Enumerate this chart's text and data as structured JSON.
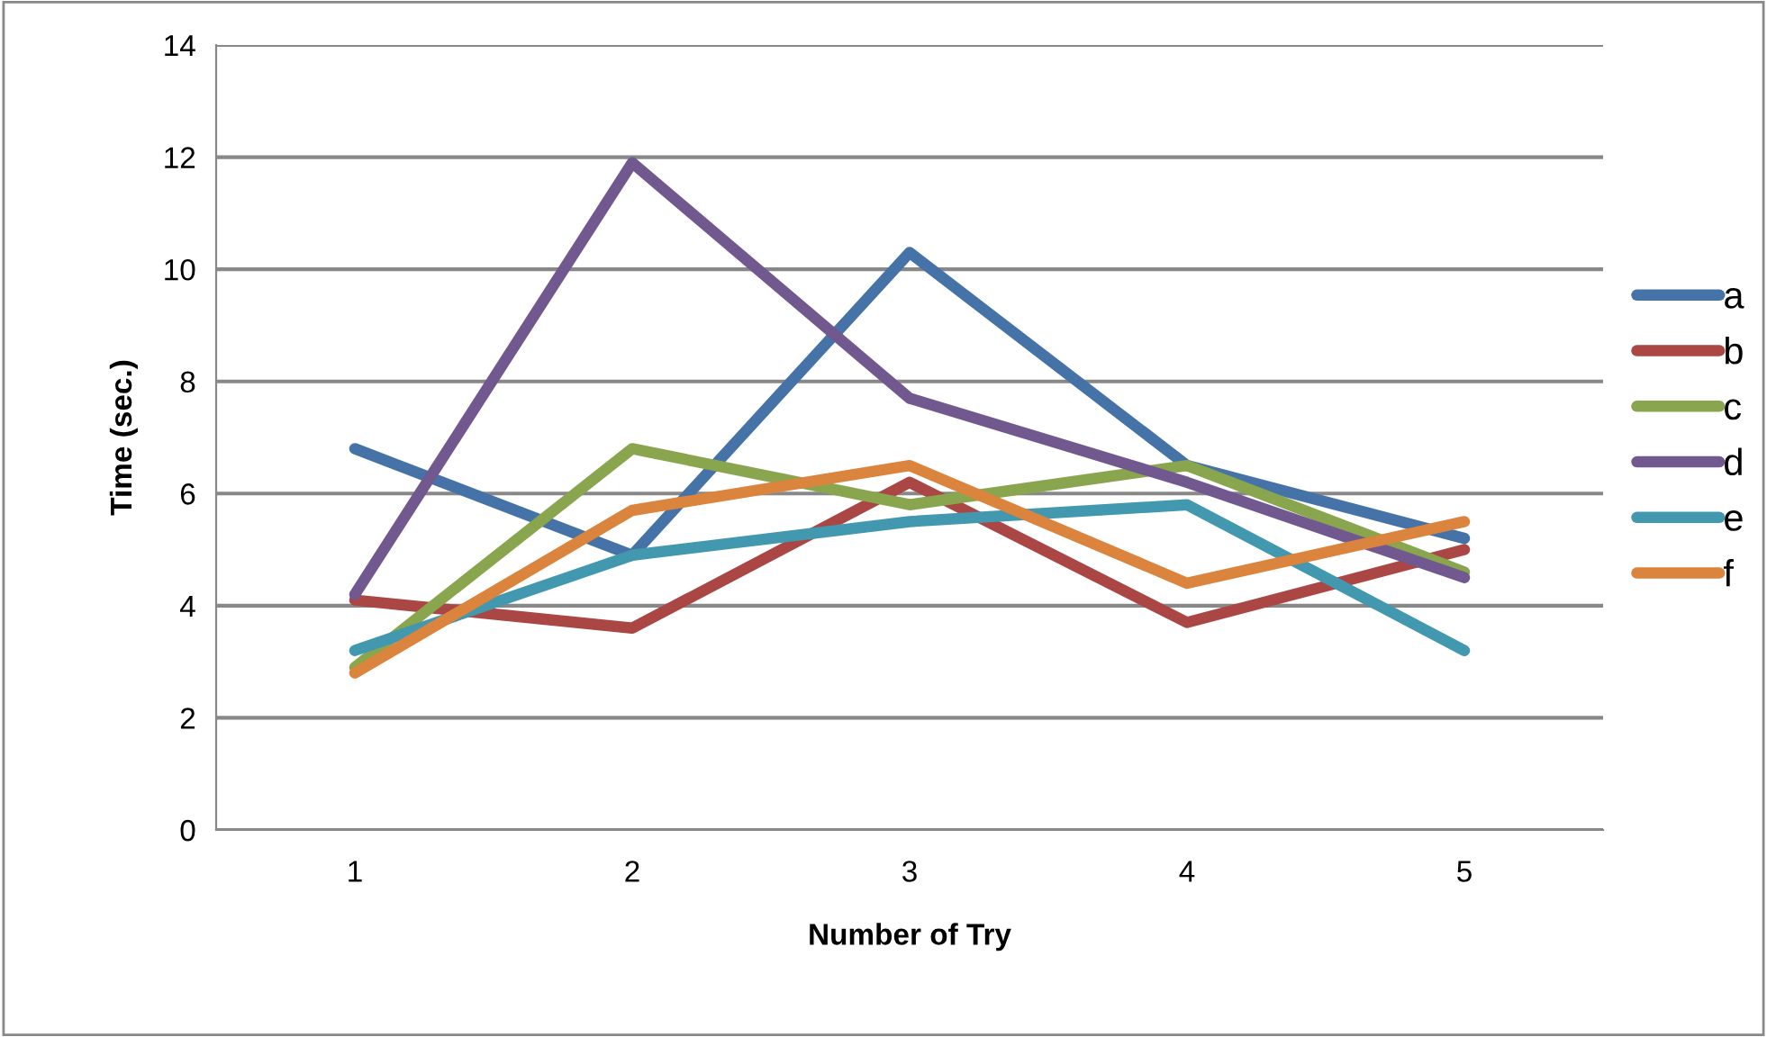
{
  "chart_data": {
    "type": "line",
    "xlabel": "Number of Try",
    "ylabel": "Time (sec.)",
    "categories": [
      "1",
      "2",
      "3",
      "4",
      "5"
    ],
    "ylim": [
      0,
      14
    ],
    "yticks": [
      0,
      2,
      4,
      6,
      8,
      10,
      12,
      14
    ],
    "grid": "y",
    "legend": "right",
    "marker": "none",
    "line_style": "solid",
    "series": [
      {
        "name": "a",
        "color": "#4572a7",
        "values": [
          6.8,
          4.9,
          10.3,
          6.5,
          5.2
        ]
      },
      {
        "name": "b",
        "color": "#aa4643",
        "values": [
          4.1,
          3.6,
          6.2,
          3.7,
          5.0
        ]
      },
      {
        "name": "c",
        "color": "#89a54e",
        "values": [
          2.9,
          6.8,
          5.8,
          6.5,
          4.6
        ]
      },
      {
        "name": "d",
        "color": "#71588f",
        "values": [
          4.2,
          11.9,
          7.7,
          6.2,
          4.5
        ]
      },
      {
        "name": "e",
        "color": "#4198af",
        "values": [
          3.2,
          4.9,
          5.5,
          5.8,
          3.2
        ]
      },
      {
        "name": "f",
        "color": "#db843d",
        "values": [
          2.8,
          5.7,
          6.5,
          4.4,
          5.5
        ]
      }
    ]
  }
}
